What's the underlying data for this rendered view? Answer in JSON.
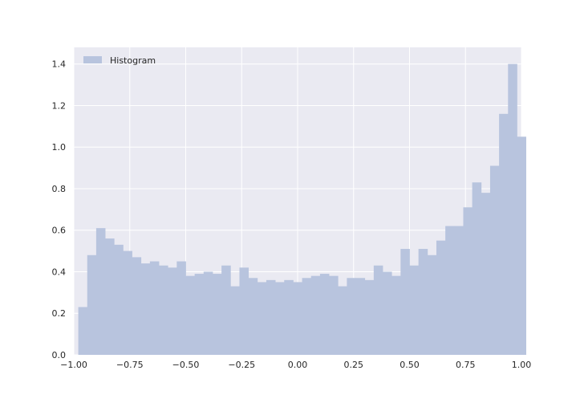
{
  "chart_data": {
    "type": "bar",
    "style": "seaborn-darkgrid",
    "background_color": "#EAEAF2",
    "grid_color": "#FFFFFF",
    "bar_color": "#B8C4DE",
    "grid": true,
    "legend": {
      "placement": "top-left",
      "entries": [
        "Histogram"
      ]
    },
    "xlim": [
      -1.0,
      1.0
    ],
    "ylim": [
      0.0,
      1.48
    ],
    "x_ticks": [
      -1.0,
      -0.75,
      -0.5,
      -0.25,
      0.0,
      0.25,
      0.5,
      0.75,
      1.0
    ],
    "x_tick_labels": [
      "−1.00",
      "−0.75",
      "−0.50",
      "−0.25",
      "0.00",
      "0.25",
      "0.50",
      "0.75",
      "1.00"
    ],
    "y_ticks": [
      0.0,
      0.2,
      0.4,
      0.6,
      0.8,
      1.0,
      1.2,
      1.4
    ],
    "y_tick_labels": [
      "0.0",
      "0.2",
      "0.4",
      "0.6",
      "0.8",
      "1.0",
      "1.2",
      "1.4"
    ],
    "bin_start": -0.98,
    "bin_width": 0.04,
    "series": [
      {
        "name": "Histogram",
        "values": [
          0.23,
          0.48,
          0.61,
          0.56,
          0.53,
          0.5,
          0.47,
          0.44,
          0.45,
          0.43,
          0.42,
          0.45,
          0.38,
          0.39,
          0.4,
          0.39,
          0.43,
          0.33,
          0.42,
          0.37,
          0.35,
          0.36,
          0.35,
          0.36,
          0.35,
          0.37,
          0.38,
          0.39,
          0.38,
          0.33,
          0.37,
          0.37,
          0.36,
          0.43,
          0.4,
          0.38,
          0.51,
          0.43,
          0.51,
          0.48,
          0.55,
          0.62,
          0.62,
          0.71,
          0.83,
          0.78,
          0.91,
          1.16,
          1.4,
          1.05
        ]
      }
    ]
  }
}
